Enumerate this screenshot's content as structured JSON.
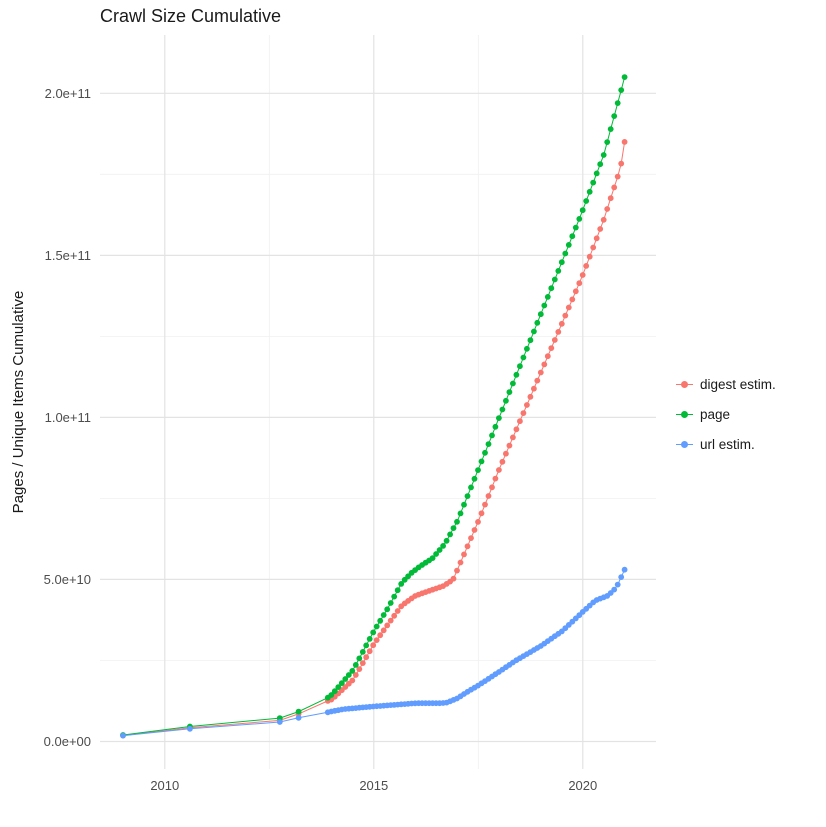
{
  "chart_data": {
    "type": "scatter",
    "title": "Crawl Size Cumulative",
    "xlabel": "",
    "ylabel": "Pages / Unique Items Cumulative",
    "unit_note": "y values stored in billions (1e9); axis labels shown in scientific notation; x is calendar year (crawl date); curves are anchor points of the cumulative totals, rendered with ~monthly interpolated crawl dots",
    "x_range": [
      2008.45,
      2021.75
    ],
    "y_range_billions": [
      -8.5,
      218
    ],
    "x_ticks": [
      {
        "label": "2010",
        "value": 2010
      },
      {
        "label": "2015",
        "value": 2015
      },
      {
        "label": "2020",
        "value": 2020
      }
    ],
    "y_ticks": [
      {
        "label": "0.0e+00",
        "value_billions": 0
      },
      {
        "label": "5.0e+10",
        "value_billions": 50
      },
      {
        "label": "1.0e+11",
        "value_billions": 100
      },
      {
        "label": "1.5e+11",
        "value_billions": 150
      },
      {
        "label": "2.0e+11",
        "value_billions": 200
      }
    ],
    "x_minor": [
      2012.5,
      2017.5
    ],
    "y_minor": [
      25,
      75,
      125,
      175
    ],
    "grid": {
      "major_color": "#e3e3e3",
      "minor_color": "#f0f0f0",
      "background": "#ffffff"
    },
    "legend": {
      "position": "right",
      "items": [
        "digest estim.",
        "page",
        "url estim."
      ]
    },
    "sampling_per_year": 12,
    "series": [
      {
        "name": "digest estim.",
        "color": "#F8766D",
        "points": [
          [
            2009.0,
            1.8
          ],
          [
            2010.6,
            4.2
          ],
          [
            2012.75,
            6.5
          ],
          [
            2013.2,
            8.5
          ]
        ],
        "curve": [
          [
            2013.9,
            12.5
          ],
          [
            2014.0,
            13
          ],
          [
            2014.5,
            19
          ],
          [
            2015.0,
            30
          ],
          [
            2015.33,
            36
          ],
          [
            2015.67,
            42
          ],
          [
            2016.0,
            45
          ],
          [
            2016.33,
            46.5
          ],
          [
            2016.67,
            48
          ],
          [
            2016.9,
            50
          ],
          [
            2017.0,
            53
          ],
          [
            2017.5,
            68
          ],
          [
            2018.0,
            84
          ],
          [
            2018.5,
            99
          ],
          [
            2019.0,
            114
          ],
          [
            2019.5,
            129
          ],
          [
            2020.0,
            144
          ],
          [
            2020.5,
            161
          ],
          [
            2020.9,
            177
          ],
          [
            2021.0,
            185
          ]
        ]
      },
      {
        "name": "page",
        "color": "#00BA38",
        "points": [
          [
            2009.0,
            2.0
          ],
          [
            2010.6,
            4.6
          ],
          [
            2012.75,
            7.2
          ],
          [
            2013.2,
            9.2
          ]
        ],
        "curve": [
          [
            2013.9,
            13.5
          ],
          [
            2014.0,
            14.5
          ],
          [
            2014.5,
            22
          ],
          [
            2015.0,
            34
          ],
          [
            2015.33,
            41
          ],
          [
            2015.67,
            49
          ],
          [
            2015.9,
            52
          ],
          [
            2016.1,
            54
          ],
          [
            2016.4,
            56.5
          ],
          [
            2016.7,
            61
          ],
          [
            2017.0,
            68
          ],
          [
            2017.5,
            84
          ],
          [
            2018.0,
            100
          ],
          [
            2018.5,
            116
          ],
          [
            2019.0,
            132
          ],
          [
            2019.5,
            148
          ],
          [
            2020.0,
            164
          ],
          [
            2020.5,
            181
          ],
          [
            2021.0,
            205
          ]
        ]
      },
      {
        "name": "url estim.",
        "color": "#619CFF",
        "points": [
          [
            2009.0,
            1.8
          ],
          [
            2010.6,
            3.9
          ],
          [
            2012.75,
            6.0
          ],
          [
            2013.2,
            7.3
          ]
        ],
        "curve": [
          [
            2013.9,
            9.0
          ],
          [
            2014.0,
            9.3
          ],
          [
            2014.3,
            10.0
          ],
          [
            2015.0,
            10.8
          ],
          [
            2015.5,
            11.3
          ],
          [
            2016.0,
            11.8
          ],
          [
            2016.6,
            11.8
          ],
          [
            2016.75,
            12.0
          ],
          [
            2017.0,
            13.3
          ],
          [
            2017.2,
            15.0
          ],
          [
            2017.5,
            17.3
          ],
          [
            2018.0,
            21.5
          ],
          [
            2018.4,
            25.0
          ],
          [
            2019.0,
            29.5
          ],
          [
            2019.5,
            34.0
          ],
          [
            2020.0,
            40.0
          ],
          [
            2020.3,
            43.5
          ],
          [
            2020.6,
            45.0
          ],
          [
            2020.8,
            47.5
          ],
          [
            2021.0,
            53.0
          ]
        ]
      }
    ]
  }
}
